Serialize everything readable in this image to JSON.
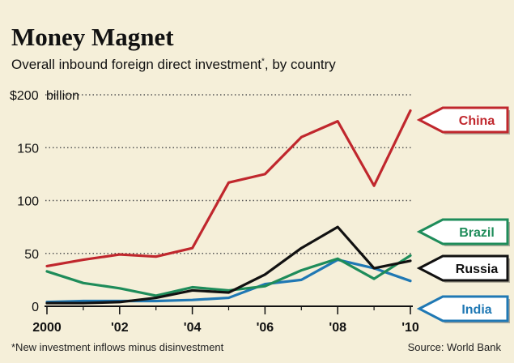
{
  "header": {
    "title": "Money Magnet",
    "subtitle": "Overall inbound foreign direct investment",
    "subtitle_mark": "*",
    "subtitle_suffix": ", by country"
  },
  "footer": {
    "footnote": "*New investment inflows minus disinvestment",
    "source": "Source: World Bank"
  },
  "colors": {
    "background": "#f5efd9",
    "China": "#c0272d",
    "Brazil": "#1e8c5a",
    "Russia": "#111111",
    "India": "#1f78b4"
  },
  "chart_data": {
    "type": "line",
    "x": [
      2000,
      2001,
      2002,
      2003,
      2004,
      2005,
      2006,
      2007,
      2008,
      2009,
      2010
    ],
    "xticks": [
      2000,
      2002,
      2004,
      2006,
      2008,
      2010
    ],
    "xtick_labels": [
      "2000",
      "'02",
      "'04",
      "'06",
      "'08",
      "'10"
    ],
    "ylim": [
      0,
      200
    ],
    "yticks": [
      0,
      50,
      100,
      150,
      200
    ],
    "ytick_labels": [
      "0",
      "50",
      "100",
      "150",
      "$200"
    ],
    "yunit": "billion",
    "grid": "dotted horizontal",
    "series": [
      {
        "name": "China",
        "values": [
          38,
          44,
          49,
          47,
          55,
          117,
          125,
          160,
          175,
          114,
          185
        ]
      },
      {
        "name": "Brazil",
        "values": [
          33,
          22,
          17,
          10,
          18,
          15,
          19,
          34,
          45,
          26,
          48
        ]
      },
      {
        "name": "Russia",
        "values": [
          3,
          3,
          4,
          8,
          15,
          13,
          30,
          55,
          75,
          36,
          43
        ]
      },
      {
        "name": "India",
        "values": [
          4,
          5,
          5,
          5,
          6,
          8,
          21,
          25,
          44,
          36,
          24
        ]
      }
    ]
  }
}
